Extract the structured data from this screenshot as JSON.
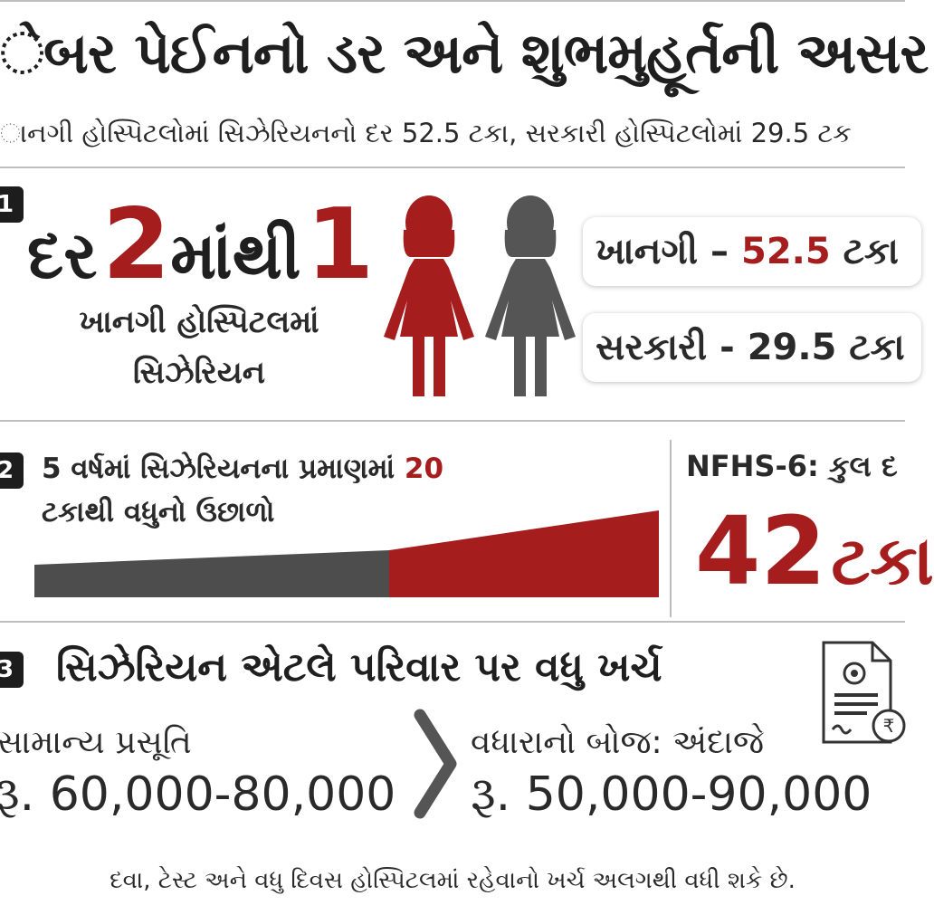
{
  "header": {
    "title": "ેબર પેઈનનો ડર અને શુભમુહૂર્તની અસર",
    "subtitle": "ાનગી હોસ્પિટલોમાં સિઝેરિયનનો દર 52.5 ટકા, સરકારી હોસ્પિટલોમાં 29.5 ટક"
  },
  "section1": {
    "badge": "1",
    "prefix": "દર",
    "num_a": "2",
    "middle": "માંથી",
    "num_b": "1",
    "caption_line1": "ખાનગી હોસ્પિટલમાં",
    "caption_line2": "સિઝેરિયન",
    "private_label": "ખાનગી –",
    "private_value": "52.5",
    "private_unit": "ટકા",
    "government_text": "સરકારી - 29.5 ટકા",
    "colors": {
      "highlight": "#a51d1d",
      "neutral": "#555555"
    }
  },
  "section2": {
    "badge": "2",
    "text_part1": "5 વર્ષમાં સિઝેરિયનના પ્રમાણમાં",
    "text_highlight": "20",
    "text_line2": "ટકાથી વધુનો ઉછાળો",
    "nfhs_label": "NFHS-6: કુલ દ",
    "big_value": "42",
    "big_unit": "ટકા",
    "increase_percent": 20
  },
  "section3": {
    "badge": "3",
    "title": "સિઝેરિયન એટલે પરિવાર પર વધુ ખર્ચ",
    "normal_label": "સામાન્ય પ્રસૂતિ",
    "normal_amount": "રૂ. 60,000-80,000",
    "extra_label": "વધારાનો બોજ: અંદાજે",
    "extra_amount": "રૂ. 50,000-90,000",
    "document_icon": "receipt-document-icon",
    "rupee_icon": "rupee-coin-icon",
    "footer": "દવા, ટેસ્ટ અને વધુ દિવસ હોસ્પિટલમાં રહેવાનો ખર્ચ અલગથી વધી શકે છે."
  }
}
